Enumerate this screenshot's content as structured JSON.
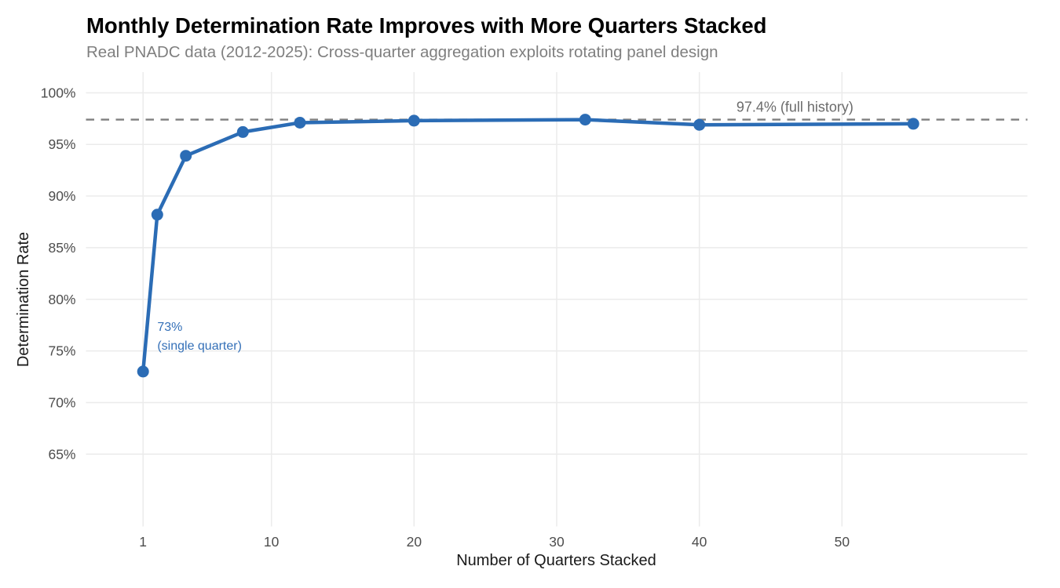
{
  "chart_data": {
    "type": "line",
    "title": "Monthly Determination Rate Improves with More Quarters Stacked",
    "subtitle": "Real PNADC data (2012-2025): Cross-quarter aggregation exploits rotating panel design",
    "xlabel": "Number of Quarters Stacked",
    "ylabel": "Determination Rate",
    "legend": "none",
    "grid": "major-only",
    "xlim": [
      -3,
      63
    ],
    "ylim": [
      58,
      102
    ],
    "x_ticks": [
      1,
      10,
      20,
      30,
      40,
      50
    ],
    "y_ticks": [
      65,
      70,
      75,
      80,
      85,
      90,
      95,
      100
    ],
    "y_tick_suffix": "%",
    "series": [
      {
        "name": "monthly-determination-rate",
        "x": [
          1,
          2,
          4,
          8,
          12,
          20,
          32,
          40,
          55
        ],
        "y": [
          73.0,
          88.2,
          93.9,
          96.2,
          97.1,
          97.3,
          97.4,
          96.9,
          97.0
        ]
      }
    ],
    "reference_line": {
      "y": 97.4,
      "style": "dashed",
      "label": "97.4% (full history)",
      "label_x": 46.7,
      "label_y": 98.15
    },
    "point_annotation": {
      "lines": [
        "73%",
        "(single quarter)"
      ],
      "x": 2.0,
      "y": 78.3
    },
    "colors": {
      "series": "#2b6cb5",
      "point": "#2b6cb5",
      "reference_line": "#7f7f7f",
      "reference_label": "#6b6b6b",
      "grid": "#ebebeb",
      "annotation": "#3470b8",
      "tick_label": "#4d4d4d",
      "axis_title": "#1a1a1a",
      "title": "#000000",
      "subtitle": "#7f7f7f",
      "background": "#ffffff"
    }
  }
}
